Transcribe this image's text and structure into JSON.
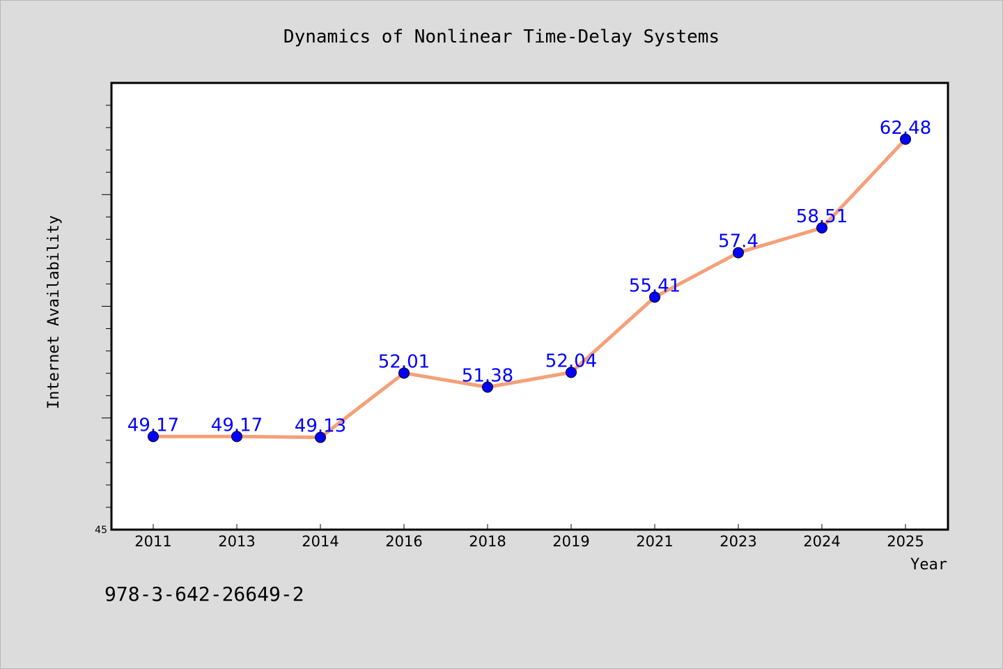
{
  "chart_data": {
    "type": "line",
    "title": "Dynamics of Nonlinear Time-Delay Systems",
    "xlabel": "Year",
    "ylabel": "Internet Availability",
    "categories": [
      "2011",
      "2013",
      "2014",
      "2016",
      "2018",
      "2019",
      "2021",
      "2023",
      "2024",
      "2025"
    ],
    "series": [
      {
        "values": [
          49.17,
          49.17,
          49.13,
          52.01,
          51.38,
          52.04,
          55.41,
          57.4,
          58.51,
          62.48
        ],
        "labels": [
          "49.17",
          "49.17",
          "49.13",
          "52.01",
          "51.38",
          "52.04",
          "55.41",
          "57.4",
          "58.51",
          "62.48"
        ]
      }
    ],
    "ylim": [
      45,
      65
    ],
    "ytick_labels": [
      "45"
    ],
    "grid": false,
    "line_color": "#f4a07a",
    "marker_color": "#0000ff"
  },
  "footer": {
    "code": "978-3-642-26649-2"
  }
}
